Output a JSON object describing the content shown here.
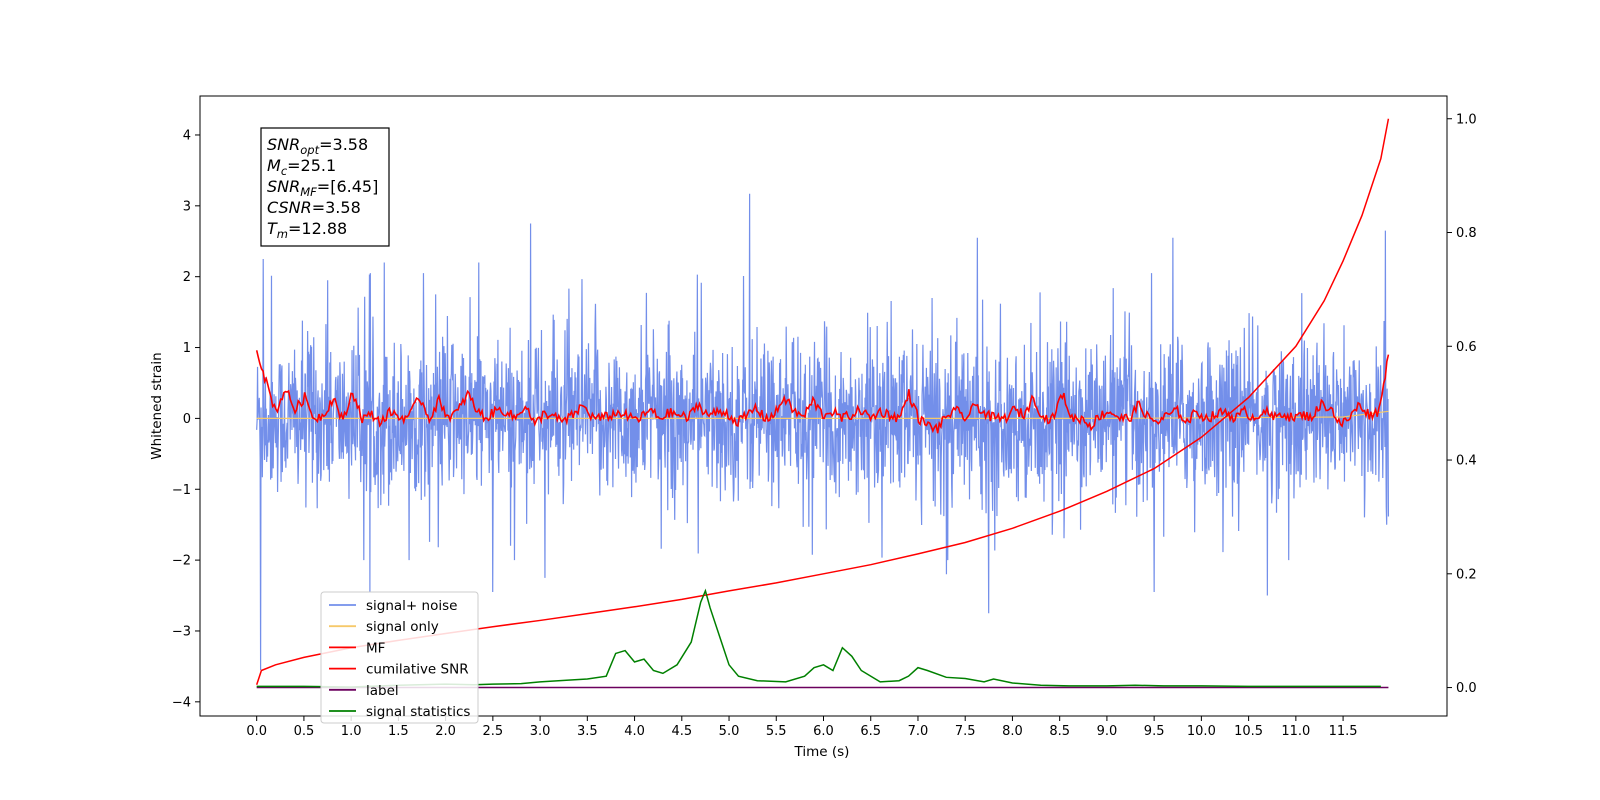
{
  "chart_data": {
    "type": "line",
    "xlabel": "Time (s)",
    "ylabel": "Whitened strain",
    "xlim": [
      -0.6,
      12.6
    ],
    "ylim": [
      -4.2,
      4.55
    ],
    "ylim_right": [
      -0.05,
      1.04
    ],
    "grid": false,
    "legend_placement": "lower-left",
    "xticks": [
      "0.0",
      "0.5",
      "1.0",
      "1.5",
      "2.0",
      "2.5",
      "3.0",
      "3.5",
      "4.0",
      "4.5",
      "5.0",
      "5.5",
      "6.0",
      "6.5",
      "7.0",
      "7.5",
      "8.0",
      "8.5",
      "9.0",
      "9.5",
      "10.0",
      "10.5",
      "11.0",
      "11.5"
    ],
    "yticks_left": [
      "4",
      "3",
      "2",
      "1",
      "0",
      "−1",
      "−2",
      "−3",
      "−4"
    ],
    "yticks_right": [
      "1.0",
      "0.8",
      "0.6",
      "0.4",
      "0.2",
      "0.0"
    ],
    "annotation": [
      {
        "base": "SNR",
        "sub": "opt",
        "value": "=3.58"
      },
      {
        "base": "M",
        "sub": "c",
        "value": "=25.1"
      },
      {
        "base": "SNR",
        "sub": "MF",
        "value": "=[6.45]"
      },
      {
        "base": "CSNR",
        "sub": "",
        "value": "=3.58"
      },
      {
        "base": "T",
        "sub": "m",
        "value": "=12.88"
      }
    ],
    "series": [
      {
        "name": "signal+ noise",
        "axis": "left",
        "color": "#5b7be6",
        "style": "noise",
        "x_range": [
          0.0,
          11.98
        ],
        "std": 0.95,
        "peaks": [
          [
            0.04,
            -3.55
          ],
          [
            0.07,
            2.25
          ],
          [
            0.75,
            1.95
          ],
          [
            1.35,
            2.2
          ],
          [
            2.35,
            2.2
          ],
          [
            2.9,
            2.75
          ],
          [
            3.05,
            -2.25
          ],
          [
            5.22,
            3.17
          ],
          [
            7.3,
            -2.2
          ],
          [
            7.63,
            2.55
          ],
          [
            7.75,
            -2.75
          ],
          [
            9.7,
            2.55
          ],
          [
            9.5,
            -2.45
          ],
          [
            10.7,
            -2.5
          ],
          [
            11.95,
            2.65
          ],
          [
            11.96,
            -1.5
          ],
          [
            1.2,
            -2.45
          ],
          [
            2.5,
            -2.45
          ]
        ]
      },
      {
        "name": "signal only",
        "axis": "left",
        "color": "#f6c96a",
        "style": "flat",
        "x": [
          0.0,
          3.0,
          6.0,
          9.0,
          11.5,
          11.98
        ],
        "y": [
          0.0,
          0.0,
          0.0,
          0.0,
          0.02,
          0.1
        ]
      },
      {
        "name": "MF",
        "axis": "left",
        "color": "#ff0000",
        "style": "wiggle",
        "x_range": [
          0.0,
          11.98
        ],
        "y": [
          1.0,
          0.5,
          0.1,
          0.42,
          0.12,
          0.3,
          0.0,
          0.05,
          0.3,
          -0.05,
          0.38,
          0.0,
          0.05,
          -0.05,
          0.1,
          0.0,
          0.05,
          0.3,
          0.0,
          0.25,
          0.02,
          0.1,
          0.35,
          0.1,
          0.0,
          0.12,
          0.1,
          0.0,
          0.2,
          -0.1,
          0.08,
          0.02,
          -0.05,
          0.05,
          0.18,
          0.02,
          0.0,
          0.05,
          0.08,
          0.0,
          0.0,
          0.12,
          0.0,
          0.08,
          0.05,
          0.0,
          0.2,
          0.05,
          0.08,
          0.08,
          -0.05,
          0.02,
          0.15,
          0.0,
          0.05,
          0.3,
          0.1,
          0.02,
          0.25,
          0.05,
          0.1,
          0.0,
          0.05,
          0.12,
          0.0,
          0.1,
          0.05,
          0.0,
          0.35,
          0.0,
          -0.1,
          -0.15,
          0.05,
          0.1,
          0.0,
          0.2,
          0.05,
          0.0,
          0.0,
          0.12,
          0.05,
          0.3,
          0.0,
          0.0,
          0.35,
          0.0,
          0.0,
          -0.1,
          0.05,
          0.1,
          0.0,
          0.0,
          0.2,
          0.0,
          -0.05,
          0.05,
          0.1,
          -0.05,
          0.1,
          0.0,
          0.05,
          0.1,
          0.0,
          0.1,
          0.0,
          0.12,
          0.0,
          0.08,
          0.0,
          0.05,
          0.02,
          0.2,
          0.15,
          -0.1,
          0.02,
          0.2,
          0.05,
          0.1,
          0.9
        ]
      },
      {
        "name": "cumilative SNR",
        "axis": "right",
        "color": "#ff0000",
        "style": "line",
        "x": [
          0.0,
          0.05,
          0.2,
          0.5,
          1.0,
          1.5,
          2.0,
          2.5,
          3.0,
          3.5,
          4.0,
          4.5,
          5.0,
          5.5,
          6.0,
          6.5,
          7.0,
          7.5,
          8.0,
          8.5,
          9.0,
          9.5,
          10.0,
          10.5,
          11.0,
          11.3,
          11.5,
          11.7,
          11.8,
          11.9,
          11.98
        ],
        "y": [
          0.005,
          0.03,
          0.04,
          0.053,
          0.07,
          0.083,
          0.095,
          0.107,
          0.118,
          0.13,
          0.142,
          0.155,
          0.17,
          0.184,
          0.2,
          0.216,
          0.235,
          0.255,
          0.28,
          0.31,
          0.345,
          0.385,
          0.44,
          0.51,
          0.6,
          0.68,
          0.75,
          0.83,
          0.88,
          0.93,
          1.0
        ]
      },
      {
        "name": "label",
        "axis": "right",
        "color": "#6b005e",
        "style": "line",
        "x": [
          0.0,
          11.98
        ],
        "y": [
          0.0,
          0.0
        ]
      },
      {
        "name": "signal statistics",
        "axis": "right",
        "color": "#008000",
        "style": "line",
        "x": [
          0.0,
          0.5,
          1.0,
          1.5,
          2.0,
          2.3,
          2.5,
          2.8,
          3.0,
          3.3,
          3.5,
          3.7,
          3.8,
          3.9,
          4.0,
          4.1,
          4.2,
          4.3,
          4.45,
          4.6,
          4.7,
          4.75,
          4.8,
          4.9,
          5.0,
          5.1,
          5.3,
          5.6,
          5.8,
          5.9,
          6.0,
          6.1,
          6.2,
          6.3,
          6.4,
          6.6,
          6.8,
          6.9,
          7.0,
          7.1,
          7.3,
          7.5,
          7.7,
          7.8,
          8.0,
          8.3,
          8.6,
          9.0,
          9.3,
          9.6,
          10.0,
          10.5,
          11.0,
          11.5,
          11.9
        ],
        "y": [
          0.002,
          0.002,
          0.001,
          0.004,
          0.006,
          0.005,
          0.006,
          0.007,
          0.01,
          0.013,
          0.015,
          0.02,
          0.06,
          0.065,
          0.045,
          0.05,
          0.03,
          0.025,
          0.04,
          0.08,
          0.15,
          0.17,
          0.14,
          0.09,
          0.04,
          0.02,
          0.012,
          0.01,
          0.02,
          0.035,
          0.04,
          0.03,
          0.07,
          0.055,
          0.03,
          0.01,
          0.012,
          0.02,
          0.035,
          0.03,
          0.018,
          0.016,
          0.01,
          0.015,
          0.008,
          0.004,
          0.003,
          0.003,
          0.004,
          0.003,
          0.003,
          0.002,
          0.002,
          0.002,
          0.002
        ]
      }
    ]
  }
}
